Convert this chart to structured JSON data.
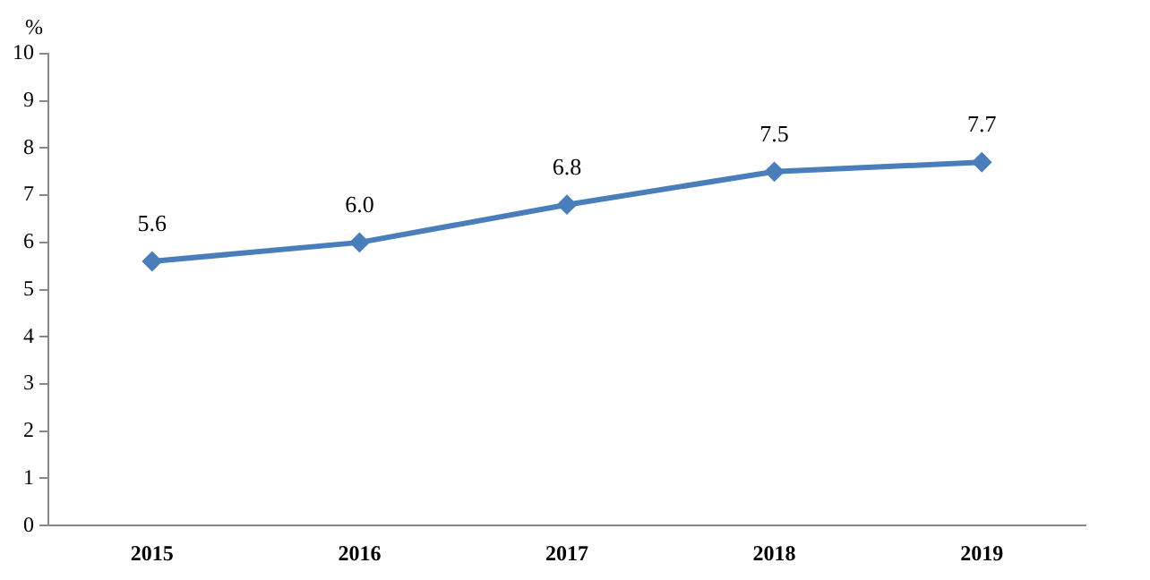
{
  "chart_data": {
    "type": "line",
    "ylabel": "%",
    "categories": [
      "2015",
      "2016",
      "2017",
      "2018",
      "2019"
    ],
    "series": [
      {
        "color": "#4a7ebb",
        "values": [
          5.6,
          6.0,
          6.8,
          7.5,
          7.7
        ]
      }
    ],
    "ylim": [
      0,
      10
    ],
    "yticks": [
      0,
      1,
      2,
      3,
      4,
      5,
      6,
      7,
      8,
      9,
      10
    ],
    "grid": false,
    "legend": false,
    "marker": "diamond",
    "line_style": "solid",
    "value_labels": [
      "5.6",
      "6.0",
      "6.8",
      "7.5",
      "7.7"
    ]
  }
}
